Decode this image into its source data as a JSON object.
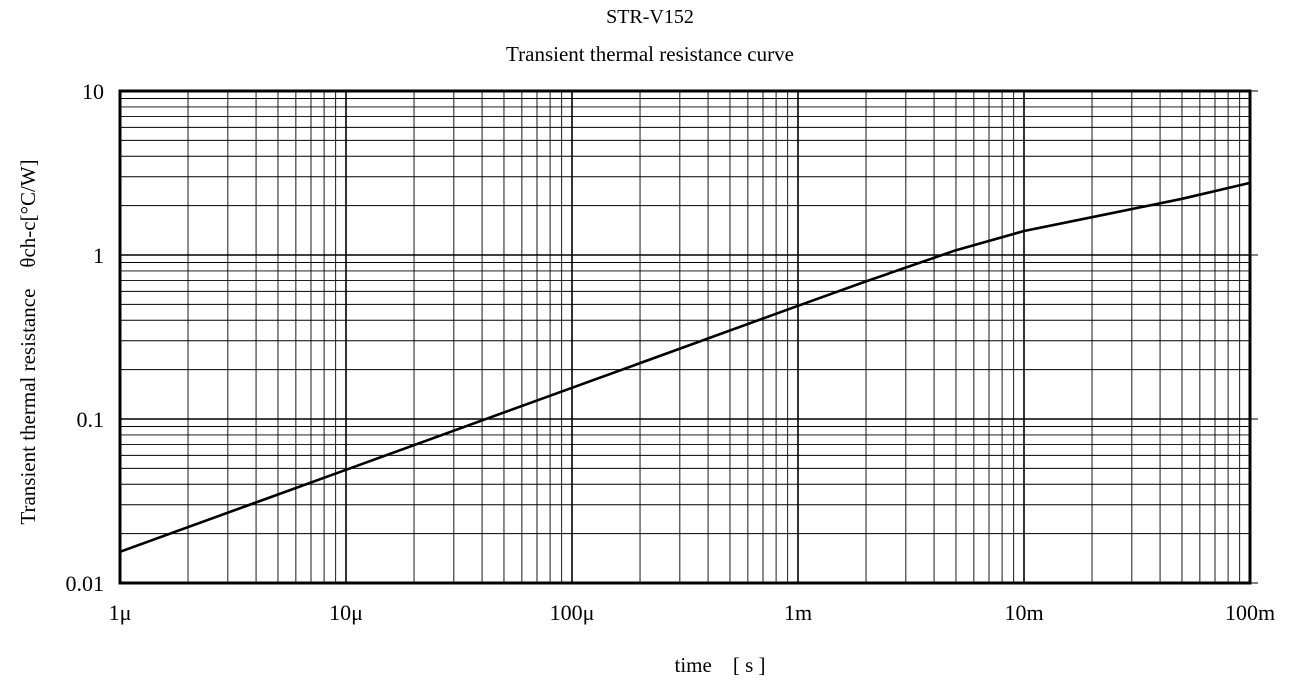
{
  "chart_data": {
    "type": "line",
    "title": "STR-V152",
    "subtitle": "Transient thermal resistance curve",
    "xlabel": "time　[ s ]",
    "ylabel": "Transient thermal resistance　θch-c[°C/W]",
    "x_scale": "log",
    "y_scale": "log",
    "xlim": [
      1e-06,
      0.1
    ],
    "ylim": [
      0.01,
      10
    ],
    "x_ticks": [
      1e-06,
      1e-05,
      0.0001,
      0.001,
      0.01,
      0.1
    ],
    "x_tick_labels": [
      "1μ",
      "10μ",
      "100μ",
      "1m",
      "10m",
      "100m"
    ],
    "y_ticks": [
      0.01,
      0.1,
      1,
      10
    ],
    "y_tick_labels": [
      "0.01",
      "0.1",
      "1",
      "10"
    ],
    "grid": true,
    "series": [
      {
        "x": [
          1e-06,
          1e-05,
          0.0001,
          0.001,
          0.002,
          0.005,
          0.01,
          0.02,
          0.05,
          0.1
        ],
        "y": [
          0.0155,
          0.049,
          0.155,
          0.49,
          0.69,
          1.07,
          1.4,
          1.7,
          2.2,
          2.75
        ]
      }
    ]
  }
}
